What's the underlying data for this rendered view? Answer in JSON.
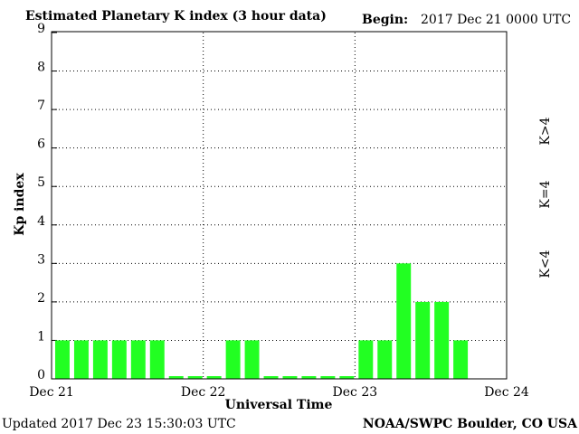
{
  "chart_data": {
    "type": "bar",
    "title": "Estimated Planetary K index (3 hour data)",
    "begin_label": "Begin:",
    "begin": "2017 Dec 21 0000 UTC",
    "x_label": "Universal Time",
    "y_label": "Kp index",
    "updated": "Updated 2017 Dec 23 15:30:03 UTC",
    "source": "NOAA/SWPC Boulder, CO USA",
    "x": [
      0,
      3,
      6,
      9,
      12,
      15,
      18,
      21,
      24,
      27,
      30,
      33,
      36,
      39,
      42,
      45,
      48,
      51,
      54,
      57,
      60,
      63
    ],
    "bar_width": 3,
    "series": [
      {
        "name": "K<4",
        "color": "#22ff22",
        "values": [
          1,
          1,
          1,
          1,
          1,
          1,
          0,
          0,
          0,
          1,
          1,
          0,
          0,
          0,
          0,
          0,
          1,
          1,
          3,
          2,
          2,
          1
        ]
      }
    ],
    "legend": [
      {
        "name": "K>4",
        "color": "#ff2200"
      },
      {
        "name": "K=4",
        "color": "#ffcc00"
      },
      {
        "name": "K<4",
        "color": "#22ff22"
      }
    ],
    "xlim": [
      0,
      72
    ],
    "xticks": [
      {
        "value": 0,
        "label": "Dec 21"
      },
      {
        "value": 24,
        "label": "Dec 22"
      },
      {
        "value": 48,
        "label": "Dec 23"
      },
      {
        "value": 72,
        "label": "Dec 24"
      }
    ],
    "ylim": [
      0,
      9
    ],
    "yticks": [
      0,
      1,
      2,
      3,
      4,
      5,
      6,
      7,
      8,
      9
    ],
    "grid": true
  }
}
